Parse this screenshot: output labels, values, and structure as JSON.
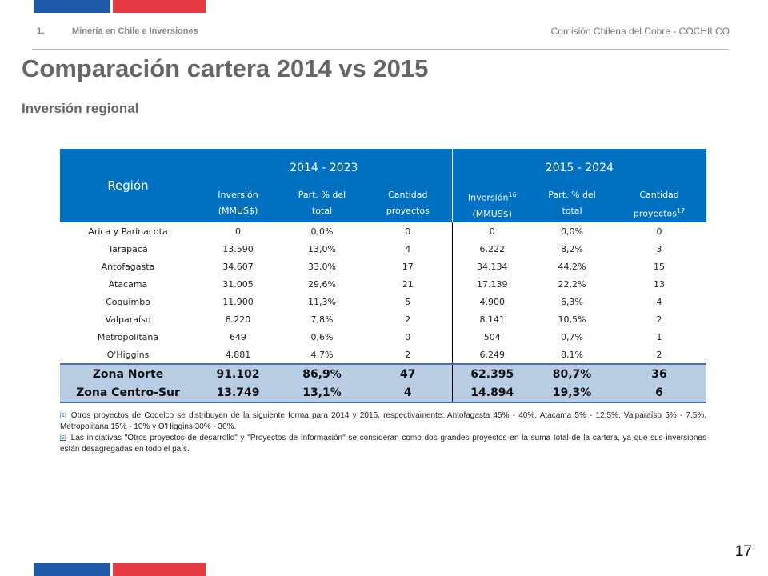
{
  "header": {
    "section_number": "1.",
    "section_label": "Minería en Chile e Inversiones",
    "organization": "Comisión Chilena del Cobre - COCHILCO"
  },
  "title": "Comparación cartera 2014 vs 2015",
  "subtitle": "Inversión regional",
  "table": {
    "region_header": "Región",
    "period_a": "2014 - 2023",
    "period_b": "2015 - 2024",
    "sub_headers_a": [
      "Inversión\n(MMUS$)",
      "Part. % del\ntotal",
      "Cantidad\nproyectos"
    ],
    "sub_headers_b": [
      "Inversión",
      "(MMUS$)",
      "Part. % del\ntotal",
      "Cantidad",
      "proyectos"
    ],
    "sup_inversion": "16",
    "sup_proyectos": "17",
    "rows": [
      [
        "Arica y Parinacota",
        "0",
        "0,0%",
        "0",
        "0",
        "0,0%",
        "0"
      ],
      [
        "Tarapacá",
        "13.590",
        "13,0%",
        "4",
        "6.222",
        "8,2%",
        "3"
      ],
      [
        "Antofagasta",
        "34.607",
        "33,0%",
        "17",
        "34.134",
        "44,2%",
        "15"
      ],
      [
        "Atacama",
        "31.005",
        "29,6%",
        "21",
        "17.139",
        "22,2%",
        "13"
      ],
      [
        "Coquimbo",
        "11.900",
        "11,3%",
        "5",
        "4.900",
        "6,3%",
        "4"
      ],
      [
        "Valparaíso",
        "8.220",
        "7,8%",
        "2",
        "8.141",
        "10,5%",
        "2"
      ],
      [
        "Metropolitana",
        "649",
        "0,6%",
        "0",
        "504",
        "0,7%",
        "1"
      ],
      [
        "O'Higgins",
        "4.881",
        "4,7%",
        "2",
        "6.249",
        "8,1%",
        "2"
      ]
    ],
    "zones": [
      [
        "Zona Norte",
        "91.102",
        "86,9%",
        "47",
        "62.395",
        "80,7%",
        "36"
      ],
      [
        "Zona Centro-Sur",
        "13.749",
        "13,1%",
        "4",
        "14.894",
        "19,3%",
        "6"
      ]
    ]
  },
  "footnotes": [
    {
      "ref": "[1]",
      "text": "Otros proyectos de Codelco se distribuyen de la siguiente forma para 2014 y 2015, respectivamente: Antofagasta 45% - 40%, Atacama 5% - 12,5%, Valparaíso 5% - 7,5%, Metropolitana 15% - 10% y O'Higgins 30% - 30%."
    },
    {
      "ref": "[2]",
      "text": "Las iniciativas \"Otros proyectos de desarrollo\" y \"Proyectos de Información\" se consideran como dos grandes proyectos en la suma total de la cartera, ya que sus inversiones están desagregadas en todo el país."
    }
  ],
  "page_number": "17",
  "colors": {
    "flag_blue": "#1e5aa8",
    "flag_red": "#e63946",
    "table_header": "#0070c0",
    "zone_fill": "#b8cce4"
  }
}
